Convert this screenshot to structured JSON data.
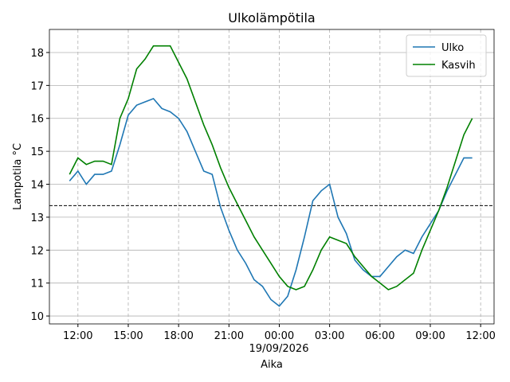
{
  "chart_data": {
    "type": "line",
    "title": "Ulkolämpötila",
    "xlabel": "Aika",
    "ylabel": "Lampotila °C",
    "xdate": "19/09/2026",
    "x": [
      -12.5,
      -12,
      -11.5,
      -11,
      -10.5,
      -10,
      -9.5,
      -9,
      -8.5,
      -8,
      -7.5,
      -7,
      -6.5,
      -6,
      -5.5,
      -5,
      -4.5,
      -4,
      -3.5,
      -3,
      -2.5,
      -2,
      -1.5,
      -1,
      -0.5,
      0,
      0.5,
      1,
      1.5,
      2,
      2.5,
      3,
      3.5,
      4,
      4.5,
      5,
      5.5,
      6,
      6.5,
      7,
      7.5,
      8,
      8.5,
      9,
      9.5,
      10,
      10.5,
      11,
      11.5
    ],
    "series": [
      {
        "name": "Ulko",
        "color": "#1f77b4",
        "values": [
          14.1,
          14.4,
          14.0,
          14.3,
          14.3,
          14.4,
          15.2,
          16.1,
          16.4,
          16.5,
          16.6,
          16.3,
          16.2,
          16.0,
          15.6,
          15.0,
          14.4,
          14.3,
          13.3,
          12.6,
          12.0,
          11.6,
          11.1,
          10.9,
          10.5,
          10.3,
          10.6,
          11.4,
          12.4,
          13.5,
          13.8,
          14.0,
          13.0,
          12.5,
          11.7,
          11.4,
          11.2,
          11.2,
          11.5,
          11.8,
          12.0,
          11.9,
          12.4,
          12.8,
          13.2,
          13.8,
          14.3,
          14.8,
          14.8
        ]
      },
      {
        "name": "Kasvih",
        "color": "#008000",
        "values": [
          14.3,
          14.8,
          14.6,
          14.7,
          14.7,
          14.6,
          16.0,
          16.6,
          17.5,
          17.8,
          18.2,
          18.2,
          18.2,
          17.7,
          17.2,
          16.5,
          15.8,
          15.2,
          14.5,
          13.9,
          13.4,
          12.9,
          12.4,
          12.0,
          11.6,
          11.2,
          10.9,
          10.8,
          10.9,
          11.4,
          12.0,
          12.4,
          12.3,
          12.2,
          11.8,
          11.5,
          11.2,
          11.0,
          10.8,
          10.9,
          11.1,
          11.3,
          12.0,
          12.6,
          13.2,
          13.9,
          14.7,
          15.5,
          16.0
        ]
      }
    ],
    "reference_line": 13.35,
    "xlim": [
      -13.7,
      12.8
    ],
    "ylim": [
      9.76,
      18.7
    ],
    "xticks": [
      {
        "value": -12,
        "label": "12:00"
      },
      {
        "value": -9,
        "label": "15:00"
      },
      {
        "value": -6,
        "label": "18:00"
      },
      {
        "value": -3,
        "label": "21:00"
      },
      {
        "value": 0,
        "label": "00:00"
      },
      {
        "value": 3,
        "label": "03:00"
      },
      {
        "value": 6,
        "label": "06:00"
      },
      {
        "value": 9,
        "label": "09:00"
      },
      {
        "value": 12,
        "label": "12:00"
      }
    ],
    "yticks": [
      10,
      11,
      12,
      13,
      14,
      15,
      16,
      17,
      18
    ],
    "grid": true,
    "legend": "upper right"
  }
}
